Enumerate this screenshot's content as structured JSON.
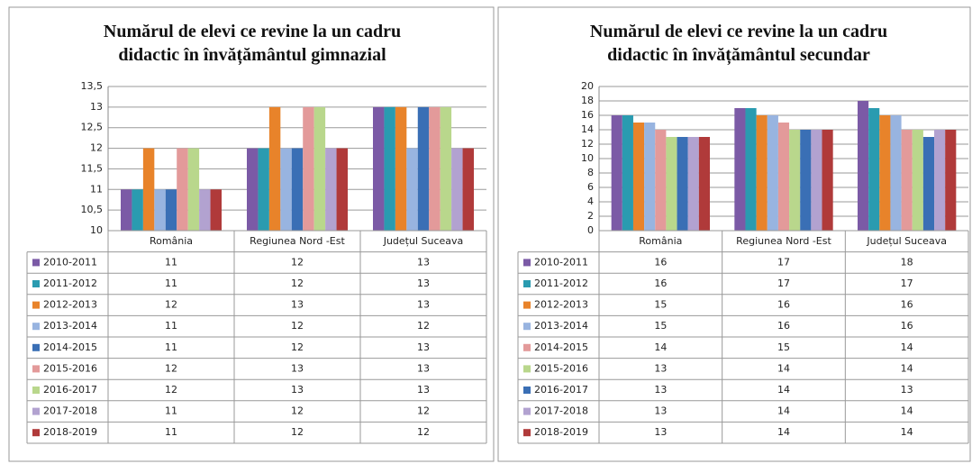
{
  "chart_data": [
    {
      "type": "bar",
      "title": "Numărul de elevi ce revine la un cadru didactic în învățământul gimnazial",
      "categories": [
        "România",
        "Regiunea Nord -Est",
        "Județul Suceava"
      ],
      "ylim": [
        10,
        13.5
      ],
      "yticks": [
        10,
        {
          "value": 10.5,
          "label": "10,5"
        },
        11,
        {
          "value": 11.5,
          "label": "11,5"
        },
        12,
        {
          "value": 12.5,
          "label": "12,5"
        },
        13,
        {
          "value": 13.5,
          "label": "13,5"
        }
      ],
      "grid": true,
      "series": [
        {
          "name": "2010-2011",
          "color": "#7b5aa6",
          "values": [
            11,
            12,
            13
          ]
        },
        {
          "name": "2011-2012",
          "color": "#2a9bb0",
          "values": [
            11,
            12,
            13
          ]
        },
        {
          "name": "2012-2013",
          "color": "#e8832a",
          "values": [
            12,
            13,
            13
          ]
        },
        {
          "name": "2013-2014",
          "color": "#98b4e0",
          "values": [
            11,
            12,
            12
          ]
        },
        {
          "name": "2014-2015",
          "color": "#3a6fb5",
          "values": [
            11,
            12,
            13
          ]
        },
        {
          "name": "2015-2016",
          "color": "#e39a9a",
          "values": [
            12,
            13,
            13
          ]
        },
        {
          "name": "2016-2017",
          "color": "#b9d78c",
          "values": [
            12,
            13,
            13
          ]
        },
        {
          "name": "2017-2018",
          "color": "#b2a2d0",
          "values": [
            11,
            12,
            12
          ]
        },
        {
          "name": "2018-2019",
          "color": "#b03a3a",
          "values": [
            11,
            12,
            12
          ]
        }
      ]
    },
    {
      "type": "bar",
      "title": "Numărul de elevi ce revine la un cadru didactic în învățământul secundar",
      "categories": [
        "România",
        "Regiunea Nord -Est",
        "Județul Suceava"
      ],
      "ylim": [
        0,
        20
      ],
      "yticks": [
        0,
        2,
        4,
        6,
        8,
        10,
        12,
        14,
        16,
        18,
        20
      ],
      "grid": true,
      "series": [
        {
          "name": "2010-2011",
          "color": "#7b5aa6",
          "values": [
            16,
            17,
            18
          ]
        },
        {
          "name": "2011-2012",
          "color": "#2a9bb0",
          "values": [
            16,
            17,
            17
          ]
        },
        {
          "name": "2012-2013",
          "color": "#e8832a",
          "values": [
            15,
            16,
            16
          ]
        },
        {
          "name": "2013-2014",
          "color": "#98b4e0",
          "values": [
            15,
            16,
            16
          ]
        },
        {
          "name": "2014-2015",
          "color": "#e39a9a",
          "values": [
            14,
            15,
            14
          ]
        },
        {
          "name": "2015-2016",
          "color": "#b9d78c",
          "values": [
            13,
            14,
            14
          ]
        },
        {
          "name": "2016-2017",
          "color": "#3a6fb5",
          "values": [
            13,
            14,
            13
          ]
        },
        {
          "name": "2017-2018",
          "color": "#b2a2d0",
          "values": [
            13,
            14,
            14
          ]
        },
        {
          "name": "2018-2019",
          "color": "#b03a3a",
          "values": [
            13,
            14,
            14
          ]
        }
      ]
    }
  ]
}
